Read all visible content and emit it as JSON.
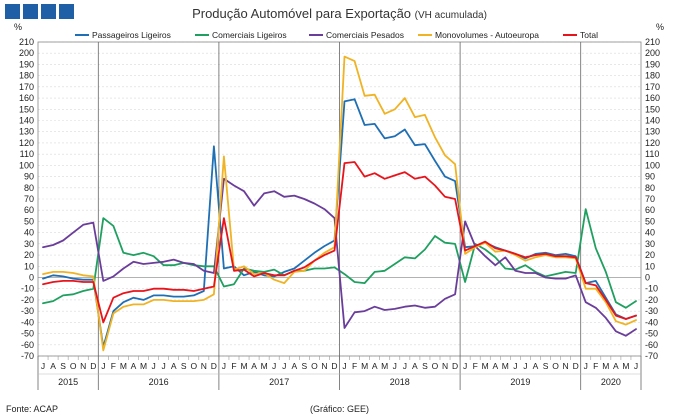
{
  "header": {
    "title_main": "Produção Automóvel para Exportação",
    "title_sub": "(VH acumulada)",
    "unit_left": "%",
    "unit_right": "%"
  },
  "footer": {
    "source": "Fonte: ACAP",
    "credit": "(Gráfico: GEE)"
  },
  "legend": [
    {
      "name": "Passageiros Ligeiros",
      "color": "#1f6fb4"
    },
    {
      "name": "Comerciais Ligeiros",
      "color": "#1fa060"
    },
    {
      "name": "Comerciais Pesados",
      "color": "#6a3d9a"
    },
    {
      "name": "Monovolumes - Autoeuropa",
      "color": "#f0b323"
    },
    {
      "name": "Total",
      "color": "#e8141c"
    }
  ],
  "chart_data": {
    "type": "line",
    "ylim": [
      -70,
      210
    ],
    "yticks": [
      210,
      200,
      190,
      180,
      170,
      160,
      150,
      140,
      130,
      120,
      110,
      100,
      90,
      80,
      70,
      60,
      50,
      40,
      30,
      20,
      10,
      0,
      -10,
      -20,
      -30,
      -40,
      -50,
      -60,
      -70
    ],
    "grid": true,
    "legend_position": "top",
    "x": [
      "J",
      "A",
      "S",
      "O",
      "N",
      "D",
      "J",
      "F",
      "M",
      "A",
      "M",
      "J",
      "J",
      "A",
      "S",
      "O",
      "N",
      "D",
      "J",
      "F",
      "M",
      "A",
      "M",
      "J",
      "J",
      "A",
      "S",
      "O",
      "N",
      "D",
      "J",
      "F",
      "M",
      "A",
      "M",
      "J",
      "J",
      "A",
      "S",
      "O",
      "N",
      "D",
      "J",
      "F",
      "M",
      "A",
      "M",
      "J",
      "J",
      "A",
      "S",
      "O",
      "N",
      "D",
      "J",
      "F",
      "M",
      "A",
      "M",
      "J"
    ],
    "years": [
      {
        "label": "2015",
        "start": 0,
        "end": 5
      },
      {
        "label": "2016",
        "start": 6,
        "end": 17
      },
      {
        "label": "2017",
        "start": 18,
        "end": 29
      },
      {
        "label": "2018",
        "start": 30,
        "end": 41
      },
      {
        "label": "2019",
        "start": 42,
        "end": 53
      },
      {
        "label": "2020",
        "start": 54,
        "end": 59
      }
    ],
    "series": [
      {
        "name": "Passageiros Ligeiros",
        "color": "#1f6fb4",
        "values": [
          -1,
          2,
          1,
          -1,
          -2,
          -2,
          -62,
          -30,
          -22,
          -18,
          -20,
          -16,
          -16,
          -17,
          -17,
          -16,
          -12,
          117,
          8,
          10,
          2,
          5,
          2,
          1,
          5,
          8,
          15,
          22,
          28,
          33,
          157,
          159,
          136,
          137,
          124,
          126,
          132,
          118,
          119,
          104,
          90,
          86,
          27,
          28,
          31,
          27,
          24,
          21,
          17,
          21,
          22,
          20,
          21,
          19,
          -5,
          -3,
          -18,
          -33,
          -37,
          -34
        ]
      },
      {
        "name": "Comerciais Ligeiros",
        "color": "#1fa060",
        "values": [
          -23,
          -21,
          -16,
          -15,
          -12,
          -10,
          53,
          46,
          22,
          20,
          22,
          19,
          11,
          11,
          13,
          11,
          10,
          10,
          -8,
          -6,
          8,
          6,
          5,
          7,
          2,
          6,
          6,
          8,
          8,
          9,
          3,
          -4,
          -5,
          5,
          6,
          12,
          18,
          17,
          25,
          37,
          31,
          30,
          -4,
          30,
          25,
          18,
          8,
          7,
          11,
          5,
          1,
          3,
          5,
          4,
          61,
          26,
          5,
          -22,
          -27,
          -21
        ]
      },
      {
        "name": "Comerciais Pesados",
        "color": "#6a3d9a",
        "values": [
          27,
          29,
          33,
          40,
          47,
          49,
          -3,
          1,
          8,
          14,
          12,
          13,
          14,
          16,
          13,
          12,
          6,
          4,
          88,
          82,
          77,
          64,
          75,
          77,
          72,
          73,
          70,
          66,
          61,
          53,
          -45,
          -31,
          -30,
          -26,
          -29,
          -28,
          -26,
          -25,
          -27,
          -26,
          -19,
          -15,
          50,
          28,
          19,
          11,
          18,
          6,
          4,
          4,
          0,
          -1,
          -1,
          2,
          -22,
          -27,
          -36,
          -48,
          -52,
          -46
        ]
      },
      {
        "name": "Monovolumes - Autoeuropa",
        "color": "#f0b323",
        "values": [
          3,
          5,
          5,
          4,
          2,
          1,
          -65,
          -32,
          -26,
          -24,
          -24,
          -20,
          -20,
          -21,
          -21,
          -21,
          -20,
          -15,
          108,
          7,
          10,
          3,
          4,
          -2,
          -5,
          5,
          6,
          15,
          22,
          27,
          197,
          193,
          162,
          163,
          146,
          150,
          160,
          143,
          145,
          125,
          109,
          101,
          21,
          27,
          31,
          23,
          24,
          20,
          15,
          18,
          20,
          18,
          18,
          17,
          -10,
          -10,
          -22,
          -39,
          -42,
          -38
        ]
      },
      {
        "name": "Total",
        "color": "#e8141c",
        "values": [
          -6,
          -4,
          -3,
          -3,
          -4,
          -4,
          -40,
          -18,
          -14,
          -12,
          -12,
          -10,
          -10,
          -11,
          -11,
          -12,
          -10,
          -8,
          53,
          6,
          7,
          1,
          4,
          2,
          2,
          6,
          9,
          15,
          20,
          24,
          102,
          103,
          90,
          93,
          88,
          91,
          94,
          88,
          90,
          82,
          72,
          70,
          24,
          28,
          32,
          26,
          24,
          21,
          18,
          20,
          21,
          19,
          19,
          18,
          -5,
          -7,
          -20,
          -34,
          -37,
          -34
        ]
      }
    ]
  }
}
